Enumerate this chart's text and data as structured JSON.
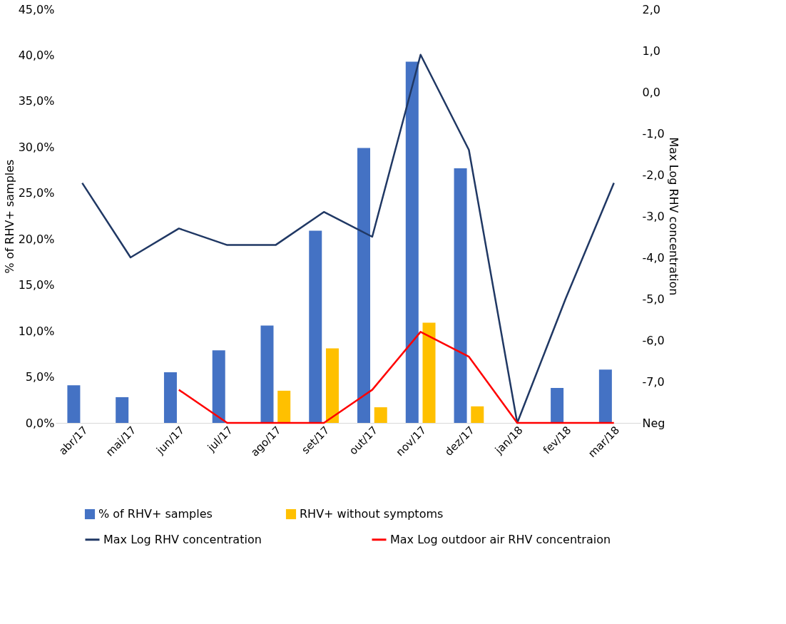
{
  "chart_data": {
    "type": "bar",
    "categories": [
      "abr/17",
      "mai/17",
      "jun/17",
      "jul/17",
      "ago/17",
      "set/17",
      "out/17",
      "nov/17",
      "dez/17",
      "jan/18",
      "fev/18",
      "mar/18"
    ],
    "series": [
      {
        "name": "% of RHV+ samples",
        "color": "#4472c4",
        "values": [
          4.1,
          2.8,
          5.5,
          7.9,
          10.6,
          20.9,
          29.9,
          39.3,
          27.7,
          0,
          3.8,
          5.8
        ]
      },
      {
        "name": "RHV+ without symptoms",
        "color": "#ffc000",
        "values": [
          null,
          null,
          null,
          null,
          3.5,
          8.1,
          1.7,
          10.9,
          1.8,
          null,
          null,
          null
        ]
      },
      {
        "name": "Max Log RHV concentration",
        "type": "line",
        "axis": "y2",
        "color": "#203864",
        "values": [
          -2.2,
          -4.0,
          -3.3,
          -3.7,
          -3.7,
          -2.9,
          -3.5,
          0.9,
          -1.4,
          -8.0,
          -5.0,
          -2.2
        ]
      },
      {
        "name": "Max Log outdoor air RHV concentraion",
        "type": "line",
        "axis": "y2",
        "color": "#ff0000",
        "values": [
          null,
          null,
          -7.2,
          -8.0,
          -8.0,
          -8.0,
          -7.2,
          -5.8,
          -6.4,
          -8.0,
          -8.0,
          -8.0
        ]
      }
    ],
    "ylabel": "% of RHV+ samples",
    "y2label": "Max Log RHV concentration",
    "ylim": [
      0,
      45
    ],
    "yticks": [
      {
        "value": 0,
        "label": "0,0%"
      },
      {
        "value": 5,
        "label": "5,0%"
      },
      {
        "value": 10,
        "label": "10,0%"
      },
      {
        "value": 15,
        "label": "15,0%"
      },
      {
        "value": 20,
        "label": "20,0%"
      },
      {
        "value": 25,
        "label": "25,0%"
      },
      {
        "value": 30,
        "label": "30,0%"
      },
      {
        "value": 35,
        "label": "35,0%"
      },
      {
        "value": 40,
        "label": "40,0%"
      },
      {
        "value": 45,
        "label": "45,0%"
      }
    ],
    "y2lim": [
      -8,
      2
    ],
    "y2ticks": [
      {
        "value": -8,
        "label": "Neg"
      },
      {
        "value": -7,
        "label": "-7,0"
      },
      {
        "value": -6,
        "label": "-6,0"
      },
      {
        "value": -5,
        "label": "-5,0"
      },
      {
        "value": -4,
        "label": "-4,0"
      },
      {
        "value": -3,
        "label": "-3,0"
      },
      {
        "value": -2,
        "label": "-2,0"
      },
      {
        "value": -1,
        "label": "-1,0"
      },
      {
        "value": 0,
        "label": "0,0"
      },
      {
        "value": 1,
        "label": "1,0"
      },
      {
        "value": 2,
        "label": "2,0"
      }
    ],
    "grid": false,
    "legend": "bottom",
    "marker": "none",
    "line_style": "solid"
  }
}
